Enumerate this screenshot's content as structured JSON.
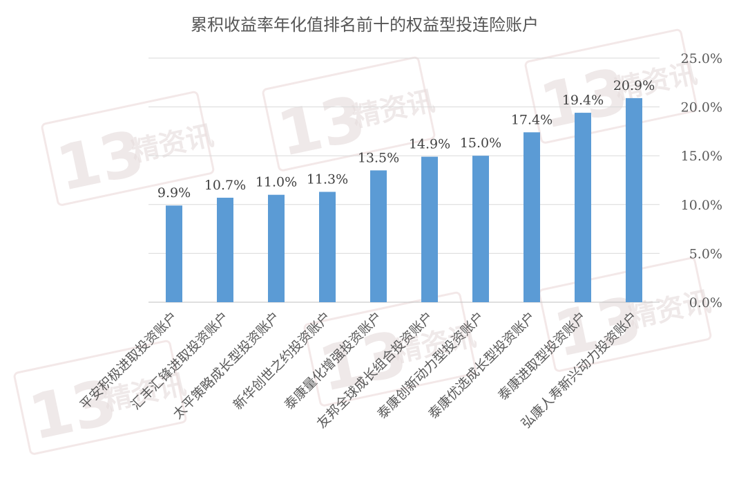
{
  "chart_data": {
    "type": "bar",
    "title": "累积收益率年化值排名前十的权益型投连险账户",
    "categories": [
      "平安积极进取投资账户",
      "汇丰汇锋进取投资账户",
      "太平策略成长型投资账户",
      "新华创世之约投资账户",
      "泰康量化增强投资账户",
      "友邦全球成长组合投资账户",
      "泰康创新动力型投资账户",
      "泰康优选成长型投资账户",
      "泰康进取型投资账户",
      "弘康人寿新兴动力投资账户"
    ],
    "values": [
      9.9,
      10.7,
      11.0,
      11.3,
      13.5,
      14.9,
      15.0,
      17.4,
      19.4,
      20.9
    ],
    "data_labels": [
      "9.9%",
      "10.7%",
      "11.0%",
      "11.3%",
      "13.5%",
      "14.9%",
      "15.0%",
      "17.4%",
      "19.4%",
      "20.9%"
    ],
    "ylim": [
      0,
      25
    ],
    "yticks": [
      0,
      5,
      10,
      15,
      20,
      25
    ],
    "ytick_labels": [
      "0.0%",
      "5.0%",
      "10.0%",
      "15.0%",
      "20.0%",
      "25.0%"
    ],
    "y_axis_side": "right",
    "grid": true,
    "bar_color": "#5b9bd5"
  },
  "watermark": {
    "number": "13",
    "text": "精资讯"
  }
}
